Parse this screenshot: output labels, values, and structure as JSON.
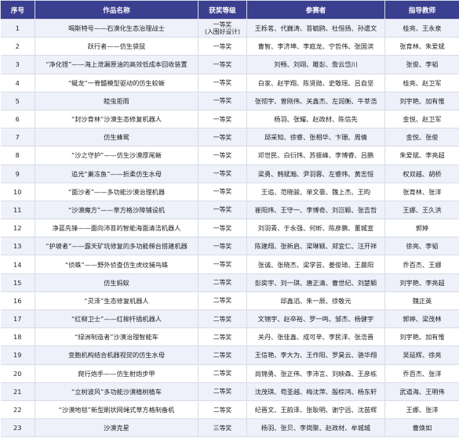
{
  "headers": {
    "index": "序号",
    "name": "作品名称",
    "level": "获奖等级",
    "members": "参赛者",
    "teacher": "指导教师"
  },
  "rows": [
    {
      "index": "1",
      "name": "喝斯特号——石漠化生态治理战士",
      "level": "一等奖",
      "level_note": "(入围好设计)",
      "members": "王栎茗、代巍涛、苔毓鸥、杜恒扬、孙遗文",
      "teacher": "桂亮、王永泉"
    },
    {
      "index": "2",
      "name": "跃行者——仿生袋鼠",
      "level": "一等奖",
      "level_note": "",
      "members": "曹智、李济坤、李庭龙、宁哲伟、张国滨",
      "teacher": "张育林、朱爱斌"
    },
    {
      "index": "3",
      "name": "“净化铿”——海上泄漏原油的高效低成本回收装置",
      "level": "一等奖",
      "level_note": "",
      "members": "刘畅、刘翊、雎彭、詹云岱川",
      "teacher": "张俊、李韬"
    },
    {
      "index": "4",
      "name": "“蜒龙”一脊髓模型驱动的仿生蛟蜥",
      "level": "一等奖",
      "level_note": "",
      "members": "白家、赵宇翔、陈贤勋、史敬瑶、吕自坚",
      "teacher": "桂亮、赵卫军"
    },
    {
      "index": "5",
      "name": "睦虫拒雨",
      "level": "一等奖",
      "level_note": "",
      "members": "张彻宇、曾刚伟、关鑫杰、左润衡、牛莘浩",
      "teacher": "刘宇艳、加有惟"
    },
    {
      "index": "6",
      "name": "“封沙育林”沙漠生态修复机器人",
      "level": "一等奖",
      "level_note": "",
      "members": "杨羽、张耀、赵政材、陈信先",
      "teacher": "金悦、赵卫军"
    },
    {
      "index": "7",
      "name": "仿生蜂鸳",
      "level": "一等奖",
      "level_note": "",
      "members": "邱采知、徐睿、张相华、卞珊、周倩",
      "teacher": "金悦、张俊"
    },
    {
      "index": "8",
      "name": "“沙之守护”——仿生沙漠厚尾蜥",
      "level": "一等奖",
      "level_note": "",
      "members": "邓世民、白衍炜、苏振峰、李博睿、吕鹏",
      "teacher": "朱爱斌、李亮超"
    },
    {
      "index": "9",
      "name": "追光“巢冻鱼”——折柔仿生水母",
      "level": "一等奖",
      "level_note": "",
      "members": "梁勇、韩斌瀚、尹羽蓉、左睿炜、黄志恒",
      "teacher": "权双越、胡桥"
    },
    {
      "index": "10",
      "name": "“面沙者”——多功能沙漠治理机器",
      "level": "一等奖",
      "level_note": "",
      "members": "王追、范晓骏、单文豪、魏上杰、王昀",
      "teacher": "张育林、张洋"
    },
    {
      "index": "11",
      "name": "“沙漠魔方”——草方格沙障铺设机",
      "level": "一等奖",
      "level_note": "",
      "members": "崔阳炜、王守一、李博奇、刘岂颖、张吉哲",
      "teacher": "王娜、王久洪"
    },
    {
      "index": "12",
      "name": "净蓝先锋——面向沛苔的智能海面清洁机器人",
      "level": "一等奖",
      "level_note": "",
      "members": "刘羽青、于永强、何昕、陈彦鹏、董城宣",
      "teacher": "郭婷"
    },
    {
      "index": "13",
      "name": "“护坡者”——露天矿坑修复的多功能梯台搭建机器",
      "level": "一等奖",
      "level_note": "",
      "members": "陈建翔、张新启、梁琳颖、郑宜仁、汪开祥",
      "teacher": "徐亮、李韬"
    },
    {
      "index": "14",
      "name": "“侦蛛”——野外侦查仿生虎纹捕鸟蛛",
      "level": "一等奖",
      "level_note": "",
      "members": "张诚、张晓杰、梁学芸、姜俊琦、王晨阳",
      "teacher": "乔百杰、王娜"
    },
    {
      "index": "15",
      "name": "仿生蚂蚁",
      "level": "二等奖",
      "level_note": "",
      "members": "彭奕宇、刘一琪、唐正清、曹世纪、刘楚颖",
      "teacher": "刘宇艳、李亮超"
    },
    {
      "index": "16",
      "name": "“灵泽”生态修复机器人",
      "level": "二等奖",
      "level_note": "",
      "members": "邱鑫滔、朱一辰、徐敬元",
      "teacher": "魏正英"
    },
    {
      "index": "17",
      "name": "“红柳卫士”——红柳扦插机器人",
      "level": "二等奖",
      "level_note": "",
      "members": "文锦宇、赵卒裕、罗一鸣、邹杰、杨健宇",
      "teacher": "郭婷、梁茂林"
    },
    {
      "index": "18",
      "name": "“绿洲制造者”沙漠治理智能车",
      "level": "二等奖",
      "level_note": "",
      "members": "关丹、张佳鑫、成可辛、李民洋、张浩晋",
      "teacher": "刘宇艳、加有惟"
    },
    {
      "index": "19",
      "name": "变胞机构结合机器视觉的仿生水母",
      "level": "二等奖",
      "level_note": "",
      "members": "王信艳、李大为、王作阳、罗昊云、骆华翔",
      "teacher": "吴延辉、徐亮"
    },
    {
      "index": "20",
      "name": "爬行炮手——仿生射炮步甲",
      "level": "二等奖",
      "level_note": "",
      "members": "尚锦勇、张正伟、李沛言、刘映森、王彦栋",
      "teacher": "乔百杰、张洋"
    },
    {
      "index": "21",
      "name": "“立树波风”多功能沙漠植树植车",
      "level": "二等奖",
      "level_note": "",
      "members": "沈茂琪、苟圣越、梅沈萍、殷棕鸿、杨东轩",
      "teacher": "武道海、王明伟"
    },
    {
      "index": "22",
      "name": "“沙漠地毯”新型刷状网绳式草方格制备机",
      "level": "二等奖",
      "level_note": "",
      "members": "纪晋文、王韵泽、张耿明、谢宁远、沈苗辉",
      "teacher": "王娜、张洋"
    },
    {
      "index": "23",
      "name": "沙漠克星",
      "level": "三等奖",
      "level_note": "",
      "members": "杨羽、张贝、李岗聚、赵政材、牟城城",
      "teacher": "曹焕如"
    }
  ]
}
